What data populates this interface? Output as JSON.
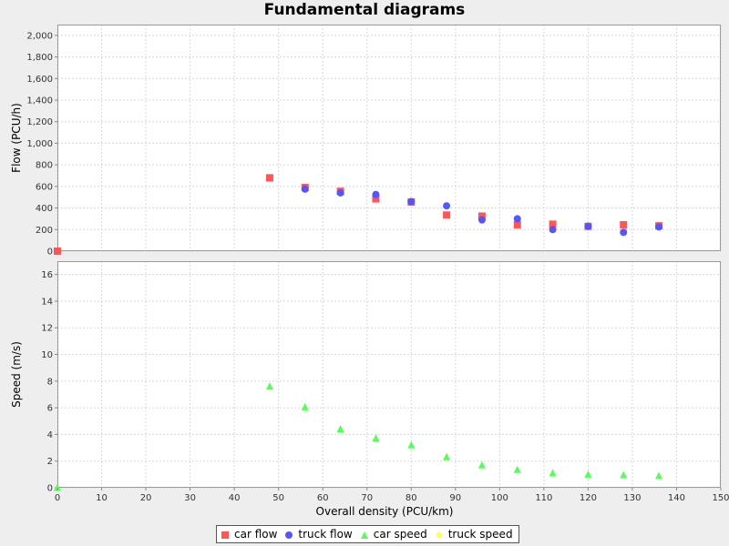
{
  "chart_data": {
    "type": "scatter",
    "title": "Fundamental diagrams",
    "xlabel": "Overall density (PCU/km)",
    "xlim": [
      0,
      150
    ],
    "xticks": [
      "0",
      "10",
      "20",
      "30",
      "40",
      "50",
      "60",
      "70",
      "80",
      "90",
      "100",
      "110",
      "120",
      "130",
      "140",
      "150"
    ],
    "grid": true,
    "legend_position": "bottom",
    "subplots": [
      {
        "ylabel": "Flow (PCU/h)",
        "ylim": [
          0,
          2100
        ],
        "yticks": [
          "0",
          "200",
          "400",
          "600",
          "800",
          "1,000",
          "1,200",
          "1,400",
          "1,600",
          "1,800",
          "2,000"
        ],
        "series": [
          {
            "name": "car flow",
            "color": "#ff5555",
            "marker": "square",
            "x": [
              0,
              48,
              56,
              64,
              72,
              80,
              88,
              96,
              104,
              112,
              120,
              128,
              136
            ],
            "y": [
              0,
              680,
              590,
              555,
              485,
              455,
              335,
              325,
              245,
              250,
              230,
              245,
              235
            ]
          },
          {
            "name": "truck flow",
            "color": "#5555ff",
            "marker": "circle",
            "x": [
              56,
              64,
              72,
              80,
              88,
              96,
              104,
              112,
              120,
              128,
              136
            ],
            "y": [
              575,
              540,
              525,
              460,
              420,
              290,
              300,
              200,
              230,
              175,
              225
            ]
          }
        ]
      },
      {
        "ylabel": "Speed (m/s)",
        "ylim": [
          0,
          17
        ],
        "yticks": [
          "0",
          "2",
          "4",
          "6",
          "8",
          "10",
          "12",
          "14",
          "16"
        ],
        "series": [
          {
            "name": "car speed",
            "color": "#55ff55",
            "marker": "triangle",
            "x": [
              0,
              48,
              56,
              64,
              72,
              80,
              88,
              96,
              104,
              112,
              120,
              128,
              136
            ],
            "y": [
              0,
              7.6,
              6.05,
              4.4,
              3.7,
              3.2,
              2.3,
              1.7,
              1.35,
              1.1,
              1.0,
              0.95,
              0.9
            ]
          },
          {
            "name": "truck speed",
            "color": "#ffff55",
            "marker": "diamond",
            "x": [],
            "y": []
          }
        ]
      }
    ]
  }
}
